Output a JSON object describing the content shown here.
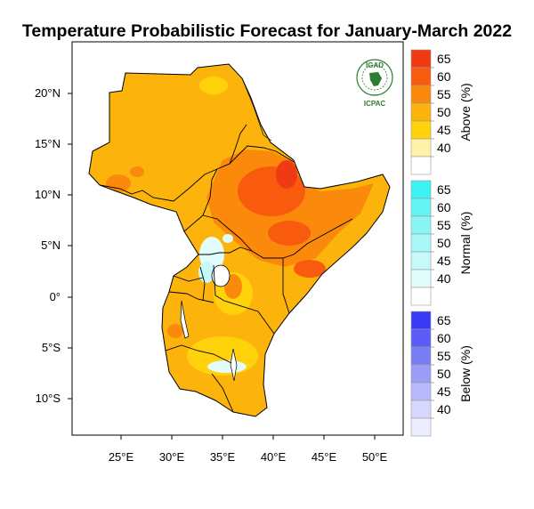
{
  "title": "Temperature Probabilistic Forecast for January-March 2022",
  "logo": {
    "top_text": "IGAD",
    "bottom_text": "ICPAC"
  },
  "map": {
    "lon_ticks": [
      "25°E",
      "30°E",
      "35°E",
      "40°E",
      "45°E",
      "50°E"
    ],
    "lat_ticks": [
      "20°N",
      "15°N",
      "10°N",
      "5°N",
      "0°",
      "5°S",
      "10°S"
    ]
  },
  "legends": [
    {
      "label": "Above (%)",
      "ticks": [
        "65",
        "60",
        "55",
        "50",
        "45",
        "40"
      ],
      "colors": [
        "#f03a13",
        "#f85a0e",
        "#fb8a0c",
        "#fcb30c",
        "#ffd20c",
        "#fff2a6",
        "#ffffff"
      ]
    },
    {
      "label": "Normal (%)",
      "ticks": [
        "65",
        "60",
        "55",
        "50",
        "45",
        "40"
      ],
      "colors": [
        "#3cf2f2",
        "#66f3f3",
        "#8af5f5",
        "#aaf7f7",
        "#c6f9f9",
        "#e2fbfb",
        "#ffffff"
      ]
    },
    {
      "label": "Below (%)",
      "ticks": [
        "65",
        "60",
        "55",
        "50",
        "45",
        "40"
      ],
      "colors": [
        "#3a3cf5",
        "#5a5cf5",
        "#7a7cf6",
        "#9a9cf8",
        "#b8b9fa",
        "#d6d7fc",
        "#ecedfe"
      ]
    }
  ]
}
